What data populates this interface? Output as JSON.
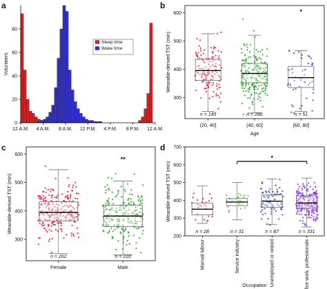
{
  "panels": {
    "a": {
      "label": "a"
    },
    "b": {
      "label": "b"
    },
    "c": {
      "label": "c"
    },
    "d": {
      "label": "d"
    }
  },
  "chart_data": [
    {
      "panel": "a",
      "type": "bar",
      "ylabel": "Volunteers",
      "xlabel": "",
      "ylim": [
        0,
        100
      ],
      "yticks": [
        0,
        20,
        40,
        60,
        80
      ],
      "xticks": [
        "12 A.M.",
        "4 A.M.",
        "8 A.M.",
        "12 P.M.",
        "4 P.M.",
        "8 P.M.",
        "12 A.M."
      ],
      "xlim_hours": [
        0,
        24
      ],
      "legend": {
        "position": "top-right"
      },
      "series": [
        {
          "name": "Sleep time",
          "color": "#e41a1c",
          "bins": [
            [
              0.5,
              93
            ],
            [
              1.0,
              45
            ],
            [
              1.5,
              20
            ],
            [
              2.0,
              10
            ],
            [
              2.5,
              8
            ],
            [
              3.0,
              5
            ],
            [
              3.5,
              3
            ],
            [
              4.0,
              2
            ],
            [
              4.5,
              1
            ],
            [
              21.5,
              2
            ],
            [
              22.0,
              5
            ],
            [
              22.5,
              12
            ],
            [
              23.0,
              25
            ],
            [
              23.5,
              85
            ]
          ]
        },
        {
          "name": "Wake time",
          "color": "#3030d0",
          "bins": [
            [
              3.5,
              1
            ],
            [
              4.0,
              2
            ],
            [
              4.5,
              3
            ],
            [
              5.0,
              5
            ],
            [
              5.5,
              9
            ],
            [
              6.0,
              15
            ],
            [
              6.5,
              30
            ],
            [
              7.0,
              55
            ],
            [
              7.5,
              80
            ],
            [
              8.0,
              100
            ],
            [
              8.5,
              95
            ],
            [
              9.0,
              45
            ],
            [
              9.5,
              28
            ],
            [
              10.0,
              18
            ],
            [
              10.5,
              12
            ],
            [
              11.0,
              8
            ],
            [
              11.5,
              5
            ],
            [
              12.0,
              3
            ],
            [
              12.5,
              2
            ],
            [
              13.0,
              2
            ],
            [
              13.5,
              1
            ],
            [
              14.0,
              1
            ],
            [
              14.5,
              1
            ]
          ]
        }
      ]
    },
    {
      "panel": "b",
      "type": "box",
      "ylabel": "Wearable-derived TST (min)",
      "xlabel": "Age",
      "ylim": [
        225,
        625
      ],
      "yticks": [
        300,
        400,
        500,
        600
      ],
      "categories": [
        "(20, 40]",
        "(40, 60]",
        "(60, 80]"
      ],
      "n_labels": [
        "n = 145",
        "n = 286",
        "n = 51"
      ],
      "colors": [
        "#e8102a",
        "#1aa01a",
        "#1c3ad0"
      ],
      "box_stats": [
        {
          "min": 250,
          "q1": 360,
          "median": 395,
          "q3": 435,
          "max": 525
        },
        {
          "min": 245,
          "q1": 352,
          "median": 385,
          "q3": 420,
          "max": 520
        },
        {
          "min": 250,
          "q1": 335,
          "median": 370,
          "q3": 410,
          "max": 465
        }
      ],
      "points_range": [
        [
          245,
          530
        ],
        [
          240,
          605
        ],
        [
          245,
          465
        ]
      ],
      "annotations": [
        "*"
      ]
    },
    {
      "panel": "c",
      "type": "box",
      "ylabel": "Wearable-derived TST (min)",
      "xlabel": "",
      "ylim": [
        225,
        625
      ],
      "yticks": [
        300,
        400,
        500,
        600
      ],
      "categories": [
        "Female",
        "Male"
      ],
      "n_labels": [
        "n = 262",
        "n = 220"
      ],
      "colors": [
        "#e8102a",
        "#1aa01a"
      ],
      "box_stats": [
        {
          "min": 250,
          "q1": 365,
          "median": 395,
          "q3": 432,
          "max": 545
        },
        {
          "min": 245,
          "q1": 345,
          "median": 382,
          "q3": 420,
          "max": 505
        }
      ],
      "points_range": [
        [
          235,
          605
        ],
        [
          235,
          555
        ]
      ],
      "annotations": [
        "**"
      ]
    },
    {
      "panel": "d",
      "type": "box",
      "ylabel": "Wearable-derived TST (min)",
      "xlabel": "Occupation",
      "ylim": [
        200,
        700
      ],
      "yticks": [
        200,
        300,
        400,
        500,
        600,
        700
      ],
      "categories": [
        "Manual labour",
        "Service industry",
        "Unemployed or retired",
        "Office work, professionals"
      ],
      "n_labels": [
        "n = 28",
        "n = 31",
        "n = 87",
        "n = 331"
      ],
      "colors": [
        "#e8102a",
        "#2ec82e",
        "#1c3ad0",
        "#8a2be2"
      ],
      "box_stats": [
        {
          "min": 270,
          "q1": 318,
          "median": 350,
          "q3": 385,
          "max": 480
        },
        {
          "min": 290,
          "q1": 370,
          "median": 390,
          "q3": 410,
          "max": 500
        },
        {
          "min": 265,
          "q1": 360,
          "median": 395,
          "q3": 430,
          "max": 520
        },
        {
          "min": 250,
          "q1": 355,
          "median": 385,
          "q3": 425,
          "max": 525
        }
      ],
      "points_range": [
        [
          215,
          470
        ],
        [
          280,
          490
        ],
        [
          260,
          520
        ],
        [
          240,
          640
        ]
      ],
      "annotations": [
        "*"
      ]
    }
  ]
}
